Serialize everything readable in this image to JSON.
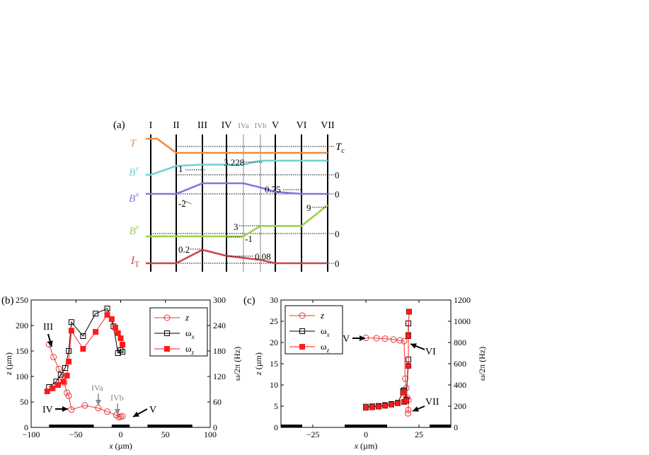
{
  "chart_data": [
    {
      "panel": "(a)",
      "type": "line",
      "title": "Magnetic field and temperature sequence",
      "stages": [
        "I",
        "II",
        "III",
        "IV",
        "IVa",
        "IVb",
        "V",
        "VI",
        "VII"
      ],
      "series": [
        {
          "name": "T",
          "sub": "",
          "color": "#f08a3c",
          "values": [
            1,
            0,
            0,
            0,
            0,
            0,
            0,
            0,
            0
          ],
          "ref_label": "Tc",
          "annotations": []
        },
        {
          "name": "B",
          "sup": "y",
          "color": "#6fd3d3",
          "values": [
            0,
            1,
            1.15,
            1.15,
            1.15,
            1.6,
            1.6,
            1.6,
            1.6
          ],
          "ref_label": "0",
          "annotations": [
            {
              "text": "1",
              "stage": "II"
            },
            {
              "text": "3.228",
              "stage": "IVa"
            }
          ]
        },
        {
          "name": "B",
          "sup": "x",
          "color": "#8f6fe0",
          "values": [
            0,
            0,
            -1,
            -1,
            -1,
            -0.6,
            -0.2,
            0,
            0
          ],
          "ref_label": "0",
          "annotations": [
            {
              "text": "-2",
              "stage": "II"
            },
            {
              "text": "0.75",
              "stage": "V"
            }
          ]
        },
        {
          "name": "B",
          "sup": "z",
          "color": "#9ad24a",
          "values": [
            0,
            0,
            0,
            0,
            0,
            1,
            1,
            1,
            3
          ],
          "ref_label": "0",
          "annotations": [
            {
              "text": "3",
              "stage": "IVa"
            },
            {
              "text": "-1",
              "stage": "IVa"
            },
            {
              "text": "9",
              "stage": "VI"
            }
          ]
        },
        {
          "name": "I",
          "sub": "T",
          "color": "#c8484e",
          "values": [
            0,
            0,
            1,
            0.55,
            0.4,
            0.25,
            0,
            0,
            0
          ],
          "ref_label": "0",
          "annotations": [
            {
              "text": "0.2",
              "stage": "II"
            },
            {
              "text": "0.08",
              "stage": "IVa"
            }
          ]
        }
      ]
    },
    {
      "panel": "(b)",
      "type": "line",
      "xlabel": "x (µm)",
      "ylabel": "z (µm)",
      "y2label": "ω/2π (Hz)",
      "xlim": [
        -100,
        100
      ],
      "ylim": [
        0,
        250
      ],
      "y2lim": [
        0,
        300
      ],
      "xticks": [
        -100,
        -50,
        0,
        50,
        100
      ],
      "yticks": [
        0,
        50,
        100,
        150,
        200,
        250
      ],
      "y2ticks": [
        0,
        60,
        120,
        180,
        240,
        300
      ],
      "bars": [
        [
          -80,
          -30
        ],
        [
          -10,
          10
        ],
        [
          30,
          80
        ]
      ],
      "series": [
        {
          "name": "z",
          "axis": "left",
          "marker": "circle-open",
          "color": "#e8373a",
          "x": [
            -80,
            -75,
            -69,
            -65,
            -63,
            -60,
            -58,
            -55,
            -40,
            -25,
            -15,
            -5,
            -2,
            0,
            2
          ],
          "y": [
            163,
            138,
            115,
            98,
            88,
            68,
            62,
            35,
            43,
            38,
            31,
            24,
            20,
            21,
            22
          ]
        },
        {
          "name": "ω",
          "sub": "x",
          "axis": "right",
          "marker": "square-open",
          "color": "#000000",
          "x": [
            -80,
            -72,
            -67,
            -62,
            -58,
            -55,
            -42,
            -28,
            -15,
            -8,
            -3,
            0,
            2
          ],
          "y": [
            95,
            108,
            124,
            140,
            180,
            248,
            215,
            268,
            280,
            238,
            175,
            182,
            178
          ]
        },
        {
          "name": "ω",
          "sub": "z",
          "axis": "right",
          "marker": "square-filled",
          "color": "#ff1a1a",
          "x": [
            -82,
            -76,
            -70,
            -64,
            -60,
            -58,
            -55,
            -42,
            -28,
            -15,
            -10,
            -6,
            -3,
            0,
            2
          ],
          "y": [
            85,
            92,
            100,
            108,
            122,
            155,
            228,
            185,
            225,
            265,
            255,
            235,
            222,
            210,
            195
          ]
        }
      ],
      "annotations": [
        {
          "text": "III",
          "color": "#000000"
        },
        {
          "text": "IV",
          "color": "#000000"
        },
        {
          "text": "IVa",
          "color": "#888888"
        },
        {
          "text": "IVb",
          "color": "#888888"
        },
        {
          "text": "V",
          "color": "#000000"
        }
      ],
      "legend": [
        "z",
        "ωx",
        "ωz"
      ]
    },
    {
      "panel": "(c)",
      "type": "line",
      "xlabel": "x (µm)",
      "ylabel": "z (µm)",
      "y2label": "ω/2π (Hz)",
      "xlim": [
        -40,
        40
      ],
      "ylim": [
        0,
        30
      ],
      "y2lim": [
        0,
        1200
      ],
      "xticks": [
        -25,
        0,
        25
      ],
      "yticks": [
        0,
        5,
        10,
        15,
        20,
        25,
        30
      ],
      "y2ticks": [
        0,
        200,
        400,
        600,
        800,
        1000,
        1200
      ],
      "bars": [
        [
          -40,
          -30
        ],
        [
          -10,
          10
        ],
        [
          30,
          40
        ]
      ],
      "series": [
        {
          "name": "z",
          "axis": "left",
          "marker": "circle-open",
          "color": "#e8373a",
          "x": [
            0,
            5,
            9,
            13,
            16,
            18,
            18.5,
            19,
            19.5,
            20,
            20,
            19.8
          ],
          "y": [
            21.1,
            21.0,
            20.9,
            20.7,
            20.5,
            20.3,
            11.5,
            9.3,
            7.0,
            6.4,
            4.1,
            3.3
          ]
        },
        {
          "name": "ω",
          "sub": "x",
          "axis": "right",
          "marker": "square-open",
          "color": "#000000",
          "x": [
            0,
            3,
            6,
            9,
            12,
            15,
            17.5,
            18,
            19,
            20,
            20,
            20
          ],
          "y": [
            195,
            198,
            202,
            210,
            220,
            232,
            340,
            350,
            260,
            640,
            870,
            980
          ]
        },
        {
          "name": "ω",
          "sub": "z",
          "axis": "right",
          "marker": "square-filled",
          "color": "#ff1a1a",
          "x": [
            0,
            3,
            6,
            9,
            12,
            15,
            17.5,
            18,
            19,
            20,
            20,
            20.3
          ],
          "y": [
            185,
            190,
            196,
            204,
            215,
            228,
            330,
            240,
            250,
            580,
            860,
            1090
          ]
        }
      ],
      "annotations": [
        {
          "text": "V",
          "color": "#000000"
        },
        {
          "text": "VI",
          "color": "#000000"
        },
        {
          "text": "VII",
          "color": "#000000"
        }
      ],
      "legend": [
        "z",
        "ωx",
        "ωz"
      ]
    }
  ]
}
